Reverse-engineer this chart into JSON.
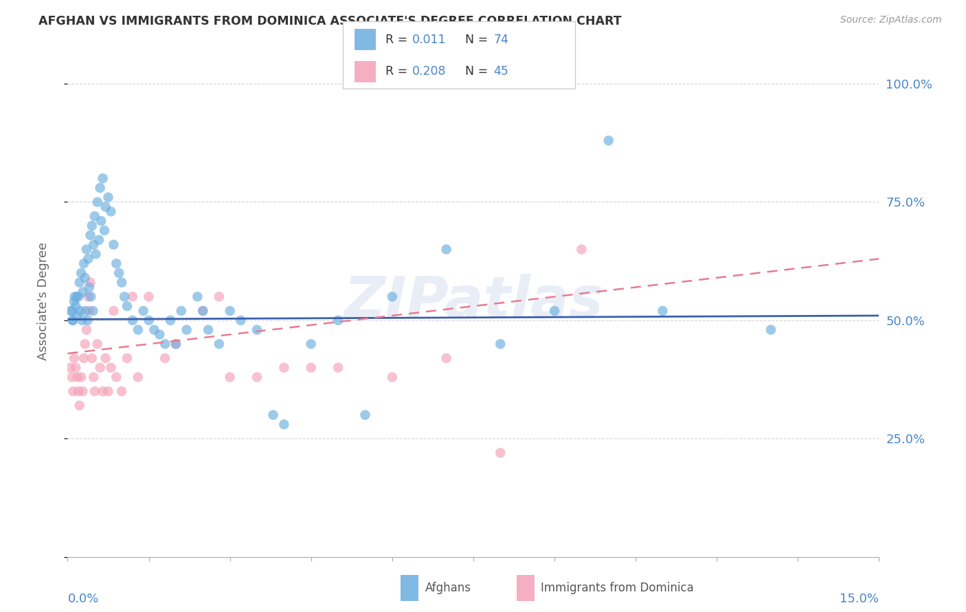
{
  "title": "AFGHAN VS IMMIGRANTS FROM DOMINICA ASSOCIATE'S DEGREE CORRELATION CHART",
  "source": "Source: ZipAtlas.com",
  "ylabel": "Associate's Degree",
  "afghans_color": "#6aaee0",
  "dominica_color": "#f4a0b8",
  "afghans_line_color": "#3a5fad",
  "dominica_line_color": "#e87a90",
  "legend_R1": "0.011",
  "legend_N1": "74",
  "legend_R2": "0.208",
  "legend_N2": "45",
  "legend_label1": "Afghans",
  "legend_label2": "Immigrants from Dominica",
  "watermark": "ZIPatlas",
  "background_color": "#ffffff",
  "grid_color": "#cccccc",
  "title_color": "#333333",
  "axis_label_color": "#4a86c8",
  "scatter_alpha": 0.65,
  "scatter_size": 110,
  "afghans_scatter_x": [
    0.08,
    0.1,
    0.12,
    0.15,
    0.18,
    0.2,
    0.22,
    0.25,
    0.28,
    0.3,
    0.32,
    0.35,
    0.38,
    0.4,
    0.42,
    0.45,
    0.48,
    0.5,
    0.52,
    0.55,
    0.58,
    0.6,
    0.62,
    0.65,
    0.68,
    0.7,
    0.75,
    0.8,
    0.85,
    0.9,
    0.95,
    1.0,
    1.05,
    1.1,
    1.2,
    1.3,
    1.4,
    1.5,
    1.6,
    1.7,
    1.8,
    1.9,
    2.0,
    2.1,
    2.2,
    2.4,
    2.5,
    2.6,
    2.8,
    3.0,
    3.2,
    3.5,
    3.8,
    4.0,
    4.5,
    5.0,
    5.5,
    6.0,
    7.0,
    8.0,
    9.0,
    10.0,
    11.0,
    13.0,
    0.06,
    0.09,
    0.13,
    0.17,
    0.23,
    0.27,
    0.33,
    0.37,
    0.43,
    0.47
  ],
  "afghans_scatter_y": [
    52,
    50,
    54,
    53,
    51,
    55,
    58,
    60,
    56,
    62,
    59,
    65,
    63,
    57,
    68,
    70,
    66,
    72,
    64,
    75,
    67,
    78,
    71,
    80,
    69,
    74,
    76,
    73,
    66,
    62,
    60,
    58,
    55,
    53,
    50,
    48,
    52,
    50,
    48,
    47,
    45,
    50,
    45,
    52,
    48,
    55,
    52,
    48,
    45,
    52,
    50,
    48,
    30,
    28,
    45,
    50,
    30,
    55,
    65,
    45,
    52,
    88,
    52,
    48,
    52,
    50,
    55,
    55,
    52,
    50,
    52,
    50,
    55,
    52
  ],
  "dominica_scatter_x": [
    0.05,
    0.08,
    0.1,
    0.12,
    0.15,
    0.18,
    0.2,
    0.22,
    0.25,
    0.28,
    0.3,
    0.32,
    0.35,
    0.38,
    0.4,
    0.42,
    0.45,
    0.48,
    0.5,
    0.55,
    0.6,
    0.65,
    0.7,
    0.75,
    0.8,
    0.85,
    0.9,
    1.0,
    1.1,
    1.2,
    1.3,
    1.5,
    1.8,
    2.0,
    2.5,
    2.8,
    3.0,
    3.5,
    4.0,
    4.5,
    5.0,
    6.0,
    7.0,
    8.0,
    9.5
  ],
  "dominica_scatter_y": [
    40,
    38,
    35,
    42,
    40,
    38,
    35,
    32,
    38,
    35,
    42,
    45,
    48,
    55,
    52,
    58,
    42,
    38,
    35,
    45,
    40,
    35,
    42,
    35,
    40,
    52,
    38,
    35,
    42,
    55,
    38,
    55,
    42,
    45,
    52,
    55,
    38,
    38,
    40,
    40,
    40,
    38,
    42,
    22,
    65
  ],
  "afg_trendline_x0": 0.0,
  "afg_trendline_y0": 50.2,
  "afg_trendline_x1": 15.0,
  "afg_trendline_y1": 51.0,
  "dom_trendline_x0": 0.0,
  "dom_trendline_y0": 43.0,
  "dom_trendline_x1": 15.0,
  "dom_trendline_y1": 63.0,
  "xlim": [
    0,
    15
  ],
  "ylim": [
    0,
    108
  ],
  "yticks": [
    0,
    25,
    50,
    75,
    100
  ],
  "ytick_labels_right": [
    "",
    "25.0%",
    "50.0%",
    "75.0%",
    "100.0%"
  ]
}
